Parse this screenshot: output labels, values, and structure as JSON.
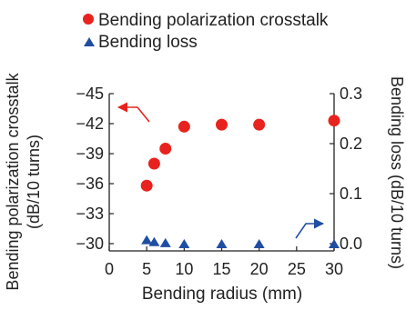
{
  "colors": {
    "crosstalk": "#e8231f",
    "loss": "#1f4ea3",
    "axis": "#222222"
  },
  "legend": {
    "crosstalk_label": "Bending polarization crosstalk",
    "loss_label": "Bending loss"
  },
  "chart_data": {
    "type": "scatter",
    "xlabel": "Bending radius (mm)",
    "ylabel_left_line1": "Bending polarization crosstalk",
    "ylabel_left_line2": "(dB/10 turns)",
    "ylabel_right": "Bending loss (dB/10 turns)",
    "xlim": [
      0,
      30
    ],
    "x_ticks": [
      0,
      5,
      10,
      15,
      20,
      25,
      30
    ],
    "x_tick_labels": [
      "0",
      "5",
      "10",
      "15",
      "20",
      "25",
      "30"
    ],
    "y_left_lim": [
      -30,
      -45
    ],
    "y_left_ticks": [
      -30,
      -33,
      -36,
      -39,
      -42,
      -45
    ],
    "y_left_tick_labels": [
      "−30",
      "−33",
      "−36",
      "−39",
      "−42",
      "−45"
    ],
    "y_right_lim": [
      0,
      0.3
    ],
    "y_right_ticks": [
      0,
      0.1,
      0.2,
      0.3
    ],
    "y_right_tick_labels": [
      "0.0",
      "0.1",
      "0.2",
      "0.3"
    ],
    "legend_position": "top-left",
    "series": [
      {
        "name": "Bending polarization crosstalk",
        "axis": "left",
        "marker": "circle",
        "x": [
          5,
          6,
          7.5,
          10,
          15,
          20,
          30
        ],
        "y": [
          -35.8,
          -38.0,
          -39.5,
          -41.7,
          -41.9,
          -41.9,
          -42.3
        ]
      },
      {
        "name": "Bending loss",
        "axis": "right",
        "marker": "triangle",
        "x": [
          5,
          6,
          7.5,
          10,
          15,
          20,
          30
        ],
        "y": [
          0.008,
          0.004,
          0.002,
          0.0,
          0.0,
          0.0,
          0.0
        ]
      }
    ]
  }
}
